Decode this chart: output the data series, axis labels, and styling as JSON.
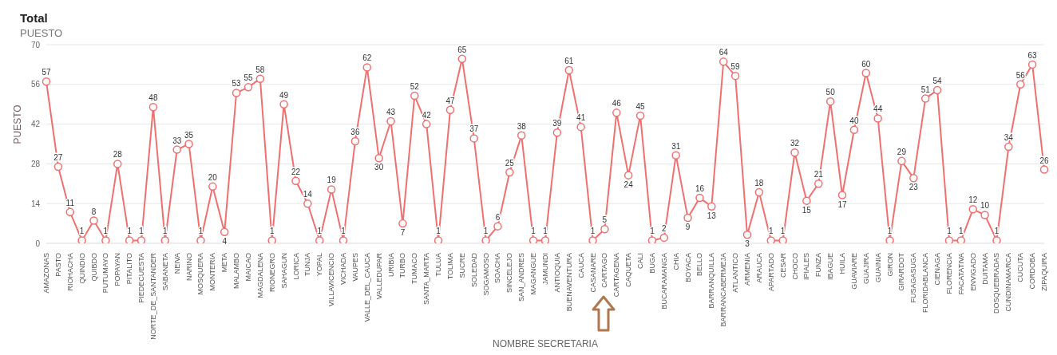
{
  "chart_data": {
    "type": "line",
    "title": "Total",
    "subtitle": "PUESTO",
    "xlabel": "NOMBRE SECRETARIA",
    "ylabel": "PUESTO",
    "categories": [
      "AMAZONAS",
      "PASTO",
      "RIOHACHA",
      "QUINDIO",
      "QUIBDO",
      "PUTUMAYO",
      "POPAYAN",
      "PITALITO",
      "PIEDECUESTA",
      "NORTE_DE_SANTANDER",
      "SABANETA",
      "NEIVA",
      "NARINO",
      "MOSQUERA",
      "MONTERIA",
      "META",
      "MALAMBO",
      "MAICAO",
      "MAGDALENA",
      "RIONEGRO",
      "SAHAGUN",
      "LORICA",
      "TUNJA",
      "YOPAL",
      "VILLAVICENCIO",
      "VICHADA",
      "VAUPES",
      "VALLE_DEL_CAUCA",
      "VALLEDUPAR",
      "URIBIA",
      "TURBO",
      "TUMACO",
      "SANTA_MARTA",
      "TULUA",
      "TOLIMA",
      "SUCRE",
      "SOLEDAD",
      "SOGAMOSO",
      "SOACHA",
      "SINCELEJO",
      "SAN_ANDRES",
      "MAGANGUE",
      "JAMUNDI",
      "ANTIOQUIA",
      "BUENAVENTURA",
      "CAUCA",
      "CASANARE",
      "CARTAGO",
      "CARTAGENA",
      "CAQUETA",
      "CALI",
      "BUGA",
      "BUCARAMANGA",
      "CHIA",
      "BOYACA",
      "BELLO",
      "BARRANQUILLA",
      "BARRANCABERMEJA",
      "ATLANTICO",
      "ARMENIA",
      "ARAUCA",
      "APARTADO",
      "CESAR",
      "CHOCO",
      "IPIALES",
      "FUNZA",
      "IBAGUE",
      "HUILA",
      "GUAVIARE",
      "GUAJIRA",
      "GUAINIA",
      "GIRON",
      "GIRARDOT",
      "FUSAGASUGA",
      "FLORIDABLANCA",
      "CIENAGA",
      "FLORENCIA",
      "FACATATIVA",
      "ENVIGADO",
      "DUITAMA",
      "DOSQUEBRADAS",
      "CUNDINAMARCA",
      "CUCUTA",
      "CORDOBA",
      "ZIPAQUIRA"
    ],
    "values": [
      57,
      27,
      11,
      1,
      8,
      1,
      28,
      1,
      1,
      48,
      1,
      33,
      35,
      1,
      20,
      4,
      53,
      55,
      58,
      1,
      49,
      22,
      14,
      1,
      19,
      1,
      36,
      62,
      30,
      43,
      7,
      52,
      42,
      1,
      47,
      65,
      37,
      1,
      6,
      25,
      38,
      1,
      1,
      39,
      61,
      41,
      1,
      5,
      46,
      24,
      45,
      1,
      2,
      31,
      9,
      16,
      13,
      64,
      59,
      3,
      18,
      1,
      1,
      32,
      15,
      21,
      50,
      17,
      40,
      60,
      44,
      1,
      29,
      23,
      51,
      54,
      1,
      1,
      12,
      10,
      1,
      34,
      56,
      63,
      26
    ],
    "color": "#f07070",
    "ylim": [
      0,
      70
    ],
    "yticks": [
      0,
      14,
      28,
      42,
      56,
      70
    ],
    "grid": "y",
    "marker": "circle",
    "line_style": "solid",
    "data_labels": true
  }
}
